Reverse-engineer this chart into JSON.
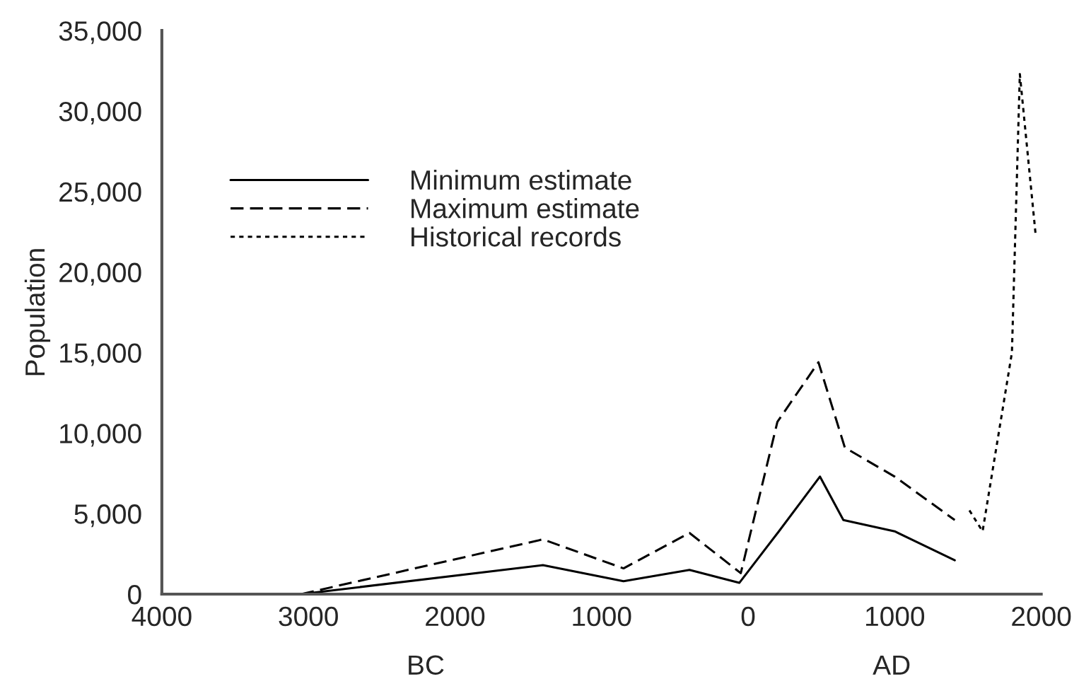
{
  "chart_data": {
    "type": "line",
    "ylabel": "Population",
    "series": [
      {
        "name": "Minimum estimate",
        "color": "#000000",
        "line_style": "solid",
        "x": [
          -3050,
          -1400,
          -850,
          -400,
          -60,
          210,
          490,
          650,
          1000,
          1410
        ],
        "values": [
          0,
          1800,
          800,
          1500,
          700,
          3900,
          7300,
          4600,
          3900,
          2100
        ]
      },
      {
        "name": "Maximum estimate",
        "color": "#000000",
        "line_style": "dashed",
        "x": [
          -3050,
          -1400,
          -850,
          -400,
          -50,
          200,
          480,
          660,
          1000,
          1410
        ],
        "values": [
          0,
          3400,
          1600,
          3800,
          1300,
          10700,
          14400,
          9100,
          7300,
          4600
        ]
      },
      {
        "name": "Historical records",
        "color": "#000000",
        "line_style": "dotted",
        "x": [
          1510,
          1600,
          1800,
          1854,
          1962
        ],
        "values": [
          5200,
          3900,
          15000,
          32300,
          22300
        ]
      }
    ],
    "xlim": [
      -4000,
      2000
    ],
    "xticks": [
      {
        "value": -4000,
        "label": "4000"
      },
      {
        "value": -3000,
        "label": "3000"
      },
      {
        "value": -2000,
        "label": "2000"
      },
      {
        "value": -1000,
        "label": "1000"
      },
      0,
      1000,
      2000
    ],
    "ylim": [
      0,
      35000
    ],
    "yticks": [
      0,
      {
        "value": 5000,
        "label": "5,000"
      },
      {
        "value": 10000,
        "label": "10,000"
      },
      {
        "value": 15000,
        "label": "15,000"
      },
      {
        "value": 20000,
        "label": "20,000"
      },
      {
        "value": 25000,
        "label": "25,000"
      },
      {
        "value": 30000,
        "label": "30,000"
      },
      {
        "value": 35000,
        "label": "35,000"
      }
    ],
    "annotations": [
      "BC",
      "AD"
    ],
    "legend": "left",
    "grid": false,
    "marker": "none"
  }
}
